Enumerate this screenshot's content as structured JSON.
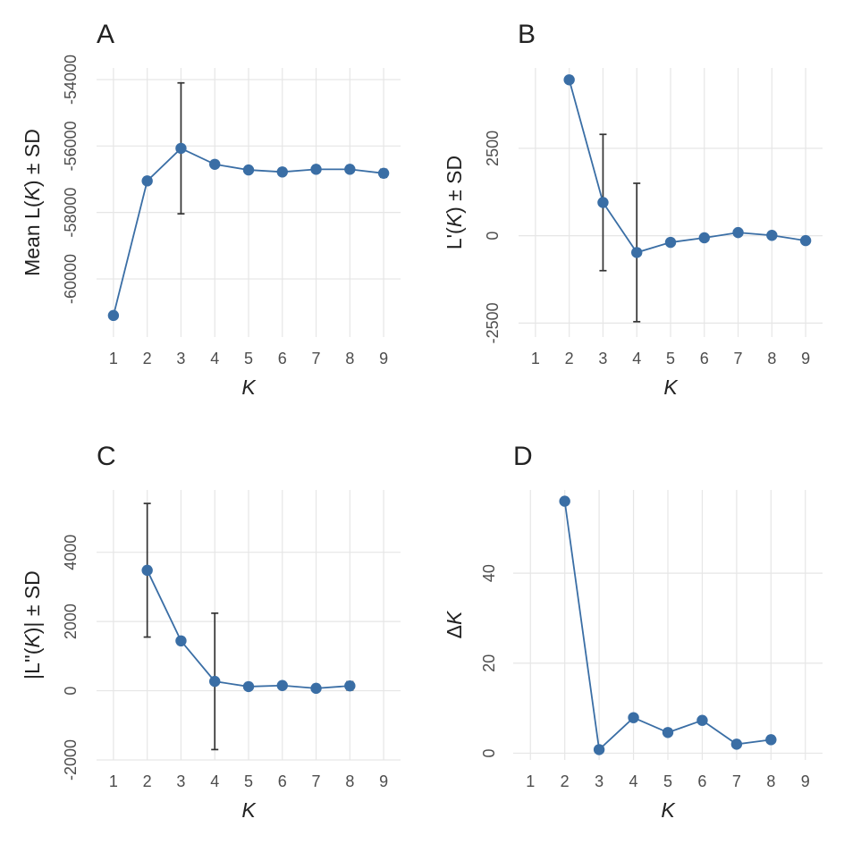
{
  "chart_data": [
    {
      "panel": "A",
      "type": "line",
      "xlabel": "K",
      "ylabel": "Mean L(K) ± SD",
      "x": [
        1,
        2,
        3,
        4,
        5,
        6,
        7,
        8,
        9
      ],
      "y": [
        -61100,
        -57050,
        -56070,
        -56550,
        -56720,
        -56780,
        -56700,
        -56700,
        -56820
      ],
      "sd": [
        60,
        50,
        1970,
        40,
        40,
        40,
        60,
        60,
        120
      ],
      "xlim": [
        0.5,
        9.5
      ],
      "ylim": [
        -61750,
        -53650
      ],
      "x_ticks": [
        1,
        2,
        3,
        4,
        5,
        6,
        7,
        8,
        9
      ],
      "y_ticks": [
        -60000,
        -58000,
        -56000,
        -54000
      ],
      "y_tick_labels": [
        "-60000",
        "-58000",
        "-56000",
        "-54000"
      ],
      "grid": true,
      "color": "#3a6ea5"
    },
    {
      "panel": "B",
      "type": "line",
      "xlabel": "K",
      "ylabel": "L'(K) ± SD",
      "x": [
        2,
        3,
        4,
        5,
        6,
        7,
        8,
        9
      ],
      "y": [
        4460,
        950,
        -480,
        -190,
        -60,
        90,
        10,
        -140
      ],
      "sd": [
        60,
        1950,
        1980,
        40,
        40,
        50,
        50,
        100
      ],
      "xlim": [
        0.5,
        9.5
      ],
      "ylim": [
        -2900,
        4800
      ],
      "x_ticks": [
        1,
        2,
        3,
        4,
        5,
        6,
        7,
        8,
        9
      ],
      "y_ticks": [
        -2500,
        0,
        2500
      ],
      "y_tick_labels": [
        "-2500",
        "0",
        "2500"
      ],
      "grid": true,
      "color": "#3a6ea5"
    },
    {
      "panel": "C",
      "type": "line",
      "xlabel": "K",
      "ylabel": "|L''(K)| ± SD",
      "x": [
        2,
        3,
        4,
        5,
        6,
        7,
        8
      ],
      "y": [
        3480,
        1440,
        270,
        120,
        150,
        70,
        140
      ],
      "sd": [
        1930,
        50,
        1970,
        40,
        40,
        50,
        120
      ],
      "xlim": [
        0.5,
        9.5
      ],
      "ylim": [
        -2000,
        5800
      ],
      "x_ticks": [
        1,
        2,
        3,
        4,
        5,
        6,
        7,
        8,
        9
      ],
      "y_ticks": [
        -2000,
        0,
        2000,
        4000
      ],
      "y_tick_labels": [
        "-2000",
        "0",
        "2000",
        "4000"
      ],
      "grid": true,
      "color": "#3a6ea5"
    },
    {
      "panel": "D",
      "type": "line",
      "xlabel": "K",
      "ylabel": "ΔK",
      "x": [
        2,
        3,
        4,
        5,
        6,
        7,
        8
      ],
      "y": [
        56.0,
        0.8,
        7.9,
        4.6,
        7.3,
        2.0,
        3.0
      ],
      "xlim": [
        0.5,
        9.5
      ],
      "ylim": [
        -1.5,
        58.5
      ],
      "x_ticks": [
        1,
        2,
        3,
        4,
        5,
        6,
        7,
        8,
        9
      ],
      "y_ticks": [
        0,
        20,
        40
      ],
      "y_tick_labels": [
        "0",
        "20",
        "40"
      ],
      "grid": true,
      "color": "#3a6ea5"
    }
  ]
}
